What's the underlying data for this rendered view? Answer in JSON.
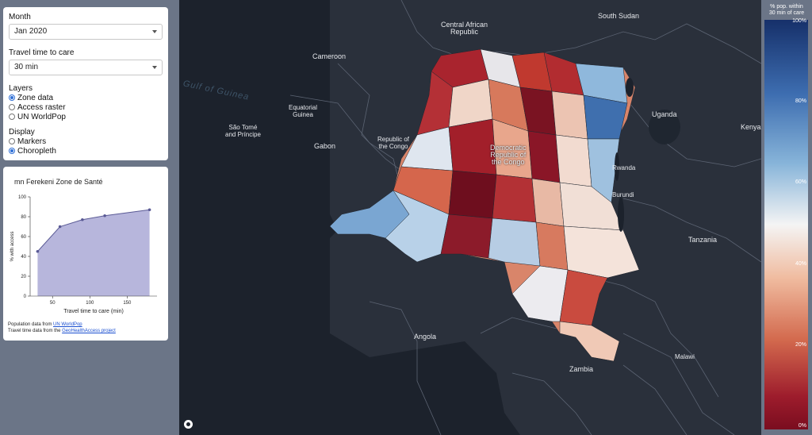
{
  "controls": {
    "month_label": "Month",
    "month_value": "Jan 2020",
    "travel_label": "Travel time to care",
    "travel_value": "30 min",
    "layers_label": "Layers",
    "layers": [
      {
        "label": "Zone data",
        "selected": true
      },
      {
        "label": "Access raster",
        "selected": false
      },
      {
        "label": "UN WorldPop",
        "selected": false
      }
    ],
    "display_label": "Display",
    "display": [
      {
        "label": "Markers",
        "selected": false
      },
      {
        "label": "Choropleth",
        "selected": true
      }
    ]
  },
  "chart_panel": {
    "title": "mn Ferekeni Zone de Santé",
    "foot1_prefix": "Population data from ",
    "foot1_link": "UN WorldPop",
    "foot2_prefix": "Travel time data from the ",
    "foot2_link": "GeoHealthAccess project"
  },
  "chart_data": {
    "type": "area",
    "xlabel": "Travel time to care (min)",
    "ylabel": "% with access",
    "x": [
      30,
      60,
      90,
      120,
      180
    ],
    "y": [
      45,
      70,
      77,
      81,
      87
    ],
    "xlim": [
      20,
      190
    ],
    "ylim": [
      0,
      100
    ],
    "xticks": [
      50,
      100,
      150
    ],
    "yticks": [
      0,
      20,
      40,
      60,
      80,
      100
    ],
    "fill_color": "#b7b6dc",
    "line_color": "#5a5a95"
  },
  "map": {
    "labels": [
      {
        "text": "South Sudan"
      },
      {
        "text": "Central African\nRepublic"
      },
      {
        "text": "Cameroon"
      },
      {
        "text": "Gulf of Guinea"
      },
      {
        "text": "Equatorial\nGuinea"
      },
      {
        "text": "São Tomé\nand Príncipe"
      },
      {
        "text": "Gabon"
      },
      {
        "text": "Republic of\nthe Congo"
      },
      {
        "text": "Democratic\nRepublic of\nthe Congo"
      },
      {
        "text": "Uganda"
      },
      {
        "text": "Kenya"
      },
      {
        "text": "Rwanda"
      },
      {
        "text": "Burundi"
      },
      {
        "text": "Tanzania"
      },
      {
        "text": "Angola"
      },
      {
        "text": "Zambia"
      },
      {
        "text": "Malawi"
      }
    ]
  },
  "legend": {
    "title": "% pop. within\n30 min of care",
    "ticks": [
      "100%",
      "80%",
      "60%",
      "40%",
      "20%",
      "0%"
    ]
  }
}
